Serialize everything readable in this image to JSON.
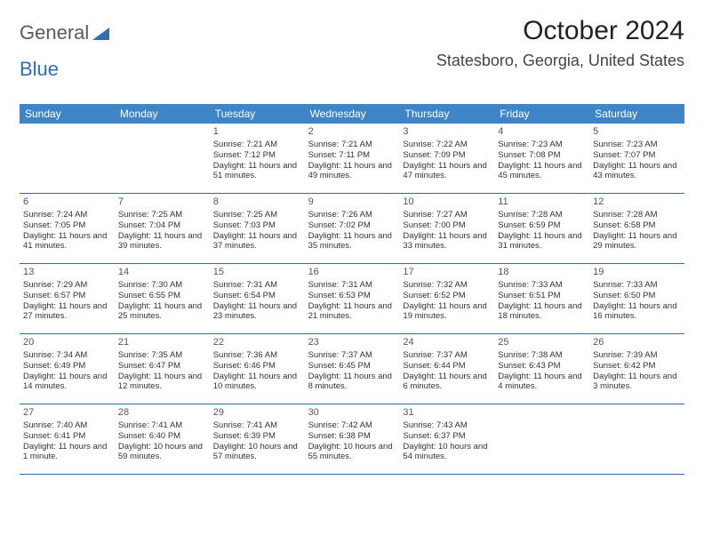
{
  "logo": {
    "text1": "General",
    "text2": "Blue"
  },
  "title": "October 2024",
  "location": "Statesboro, Georgia, United States",
  "colors": {
    "header_bg": "#3d85c6",
    "header_text": "#ffffff",
    "week_border": "#3d6a9a",
    "logo_gray": "#5a5a5a",
    "logo_blue": "#2d6fb5",
    "title_color": "#222222",
    "location_color": "#444444",
    "text_color": "#333333"
  },
  "day_headers": [
    "Sunday",
    "Monday",
    "Tuesday",
    "Wednesday",
    "Thursday",
    "Friday",
    "Saturday"
  ],
  "weeks": [
    [
      null,
      null,
      {
        "n": "1",
        "sr": "7:21 AM",
        "ss": "7:12 PM",
        "dl": "11 hours and 51 minutes."
      },
      {
        "n": "2",
        "sr": "7:21 AM",
        "ss": "7:11 PM",
        "dl": "11 hours and 49 minutes."
      },
      {
        "n": "3",
        "sr": "7:22 AM",
        "ss": "7:09 PM",
        "dl": "11 hours and 47 minutes."
      },
      {
        "n": "4",
        "sr": "7:23 AM",
        "ss": "7:08 PM",
        "dl": "11 hours and 45 minutes."
      },
      {
        "n": "5",
        "sr": "7:23 AM",
        "ss": "7:07 PM",
        "dl": "11 hours and 43 minutes."
      }
    ],
    [
      {
        "n": "6",
        "sr": "7:24 AM",
        "ss": "7:05 PM",
        "dl": "11 hours and 41 minutes."
      },
      {
        "n": "7",
        "sr": "7:25 AM",
        "ss": "7:04 PM",
        "dl": "11 hours and 39 minutes."
      },
      {
        "n": "8",
        "sr": "7:25 AM",
        "ss": "7:03 PM",
        "dl": "11 hours and 37 minutes."
      },
      {
        "n": "9",
        "sr": "7:26 AM",
        "ss": "7:02 PM",
        "dl": "11 hours and 35 minutes."
      },
      {
        "n": "10",
        "sr": "7:27 AM",
        "ss": "7:00 PM",
        "dl": "11 hours and 33 minutes."
      },
      {
        "n": "11",
        "sr": "7:28 AM",
        "ss": "6:59 PM",
        "dl": "11 hours and 31 minutes."
      },
      {
        "n": "12",
        "sr": "7:28 AM",
        "ss": "6:58 PM",
        "dl": "11 hours and 29 minutes."
      }
    ],
    [
      {
        "n": "13",
        "sr": "7:29 AM",
        "ss": "6:57 PM",
        "dl": "11 hours and 27 minutes."
      },
      {
        "n": "14",
        "sr": "7:30 AM",
        "ss": "6:55 PM",
        "dl": "11 hours and 25 minutes."
      },
      {
        "n": "15",
        "sr": "7:31 AM",
        "ss": "6:54 PM",
        "dl": "11 hours and 23 minutes."
      },
      {
        "n": "16",
        "sr": "7:31 AM",
        "ss": "6:53 PM",
        "dl": "11 hours and 21 minutes."
      },
      {
        "n": "17",
        "sr": "7:32 AM",
        "ss": "6:52 PM",
        "dl": "11 hours and 19 minutes."
      },
      {
        "n": "18",
        "sr": "7:33 AM",
        "ss": "6:51 PM",
        "dl": "11 hours and 18 minutes."
      },
      {
        "n": "19",
        "sr": "7:33 AM",
        "ss": "6:50 PM",
        "dl": "11 hours and 16 minutes."
      }
    ],
    [
      {
        "n": "20",
        "sr": "7:34 AM",
        "ss": "6:49 PM",
        "dl": "11 hours and 14 minutes."
      },
      {
        "n": "21",
        "sr": "7:35 AM",
        "ss": "6:47 PM",
        "dl": "11 hours and 12 minutes."
      },
      {
        "n": "22",
        "sr": "7:36 AM",
        "ss": "6:46 PM",
        "dl": "11 hours and 10 minutes."
      },
      {
        "n": "23",
        "sr": "7:37 AM",
        "ss": "6:45 PM",
        "dl": "11 hours and 8 minutes."
      },
      {
        "n": "24",
        "sr": "7:37 AM",
        "ss": "6:44 PM",
        "dl": "11 hours and 6 minutes."
      },
      {
        "n": "25",
        "sr": "7:38 AM",
        "ss": "6:43 PM",
        "dl": "11 hours and 4 minutes."
      },
      {
        "n": "26",
        "sr": "7:39 AM",
        "ss": "6:42 PM",
        "dl": "11 hours and 3 minutes."
      }
    ],
    [
      {
        "n": "27",
        "sr": "7:40 AM",
        "ss": "6:41 PM",
        "dl": "11 hours and 1 minute."
      },
      {
        "n": "28",
        "sr": "7:41 AM",
        "ss": "6:40 PM",
        "dl": "10 hours and 59 minutes."
      },
      {
        "n": "29",
        "sr": "7:41 AM",
        "ss": "6:39 PM",
        "dl": "10 hours and 57 minutes."
      },
      {
        "n": "30",
        "sr": "7:42 AM",
        "ss": "6:38 PM",
        "dl": "10 hours and 55 minutes."
      },
      {
        "n": "31",
        "sr": "7:43 AM",
        "ss": "6:37 PM",
        "dl": "10 hours and 54 minutes."
      },
      null,
      null
    ]
  ],
  "labels": {
    "sunrise": "Sunrise: ",
    "sunset": "Sunset: ",
    "daylight": "Daylight: "
  }
}
